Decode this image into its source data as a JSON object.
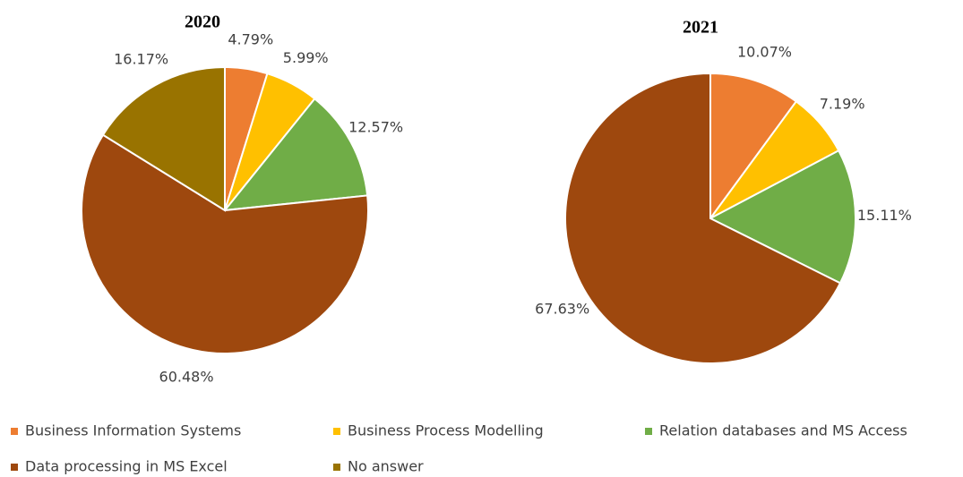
{
  "chart_data": [
    {
      "type": "pie",
      "title": "2020",
      "categories": [
        "Business Information Systems",
        "Business Process Modelling",
        "Relation databases and MS Access",
        "Data processing in MS Excel",
        "No answer"
      ],
      "values": [
        4.79,
        5.99,
        12.57,
        60.48,
        16.17
      ],
      "value_labels": [
        "4.79%",
        "5.99%",
        "12.57%",
        "60.48%",
        "16.17%"
      ],
      "colors": [
        "#ed7d31",
        "#ffc000",
        "#70ad47",
        "#9e480e",
        "#997300"
      ]
    },
    {
      "type": "pie",
      "title": "2021",
      "categories": [
        "Business Information Systems",
        "Business Process Modelling",
        "Relation databases and MS Access",
        "Data processing in MS Excel"
      ],
      "values": [
        10.07,
        7.19,
        15.11,
        67.63
      ],
      "value_labels": [
        "10.07%",
        "7.19%",
        "15.11%",
        "67.63%"
      ],
      "colors": [
        "#ed7d31",
        "#ffc000",
        "#70ad47",
        "#9e480e"
      ]
    }
  ]
}
